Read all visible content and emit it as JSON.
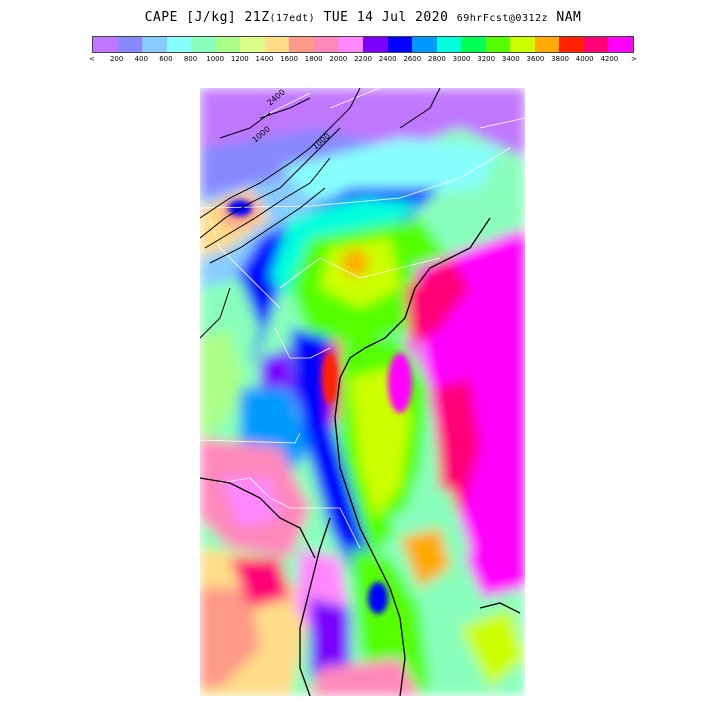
{
  "header": {
    "field": "CAPE [J/kg]",
    "valid_hour": "21Z",
    "local_time": "(17edt)",
    "valid_date": "TUE 14 Jul 2020",
    "forecast": "69hrFcst@0312z",
    "model": "NAM"
  },
  "colorbar": {
    "colors": [
      "#c077ff",
      "#8888ff",
      "#88ccff",
      "#88ffff",
      "#88ffbb",
      "#aaff88",
      "#ddff88",
      "#ffdd88",
      "#ff9988",
      "#ff88bb",
      "#ff88ff",
      "#7a00ff",
      "#0000ff",
      "#0099ff",
      "#00ffdd",
      "#00ff55",
      "#55ff00",
      "#ccff00",
      "#ffaa00",
      "#ff2200",
      "#ff0077",
      "#ff00ff"
    ],
    "left_marker": "<",
    "right_marker": ">",
    "tick_labels": [
      "200",
      "400",
      "600",
      "800",
      "1000",
      "1200",
      "1400",
      "1600",
      "1800",
      "2000",
      "2200",
      "2400",
      "2600",
      "2800",
      "3000",
      "3200",
      "3400",
      "3600",
      "3800",
      "4000",
      "4200"
    ]
  },
  "map": {
    "region": "Southeastern United States and Atlantic",
    "contour_labels": [
      "2400",
      "1000",
      "1000"
    ]
  }
}
